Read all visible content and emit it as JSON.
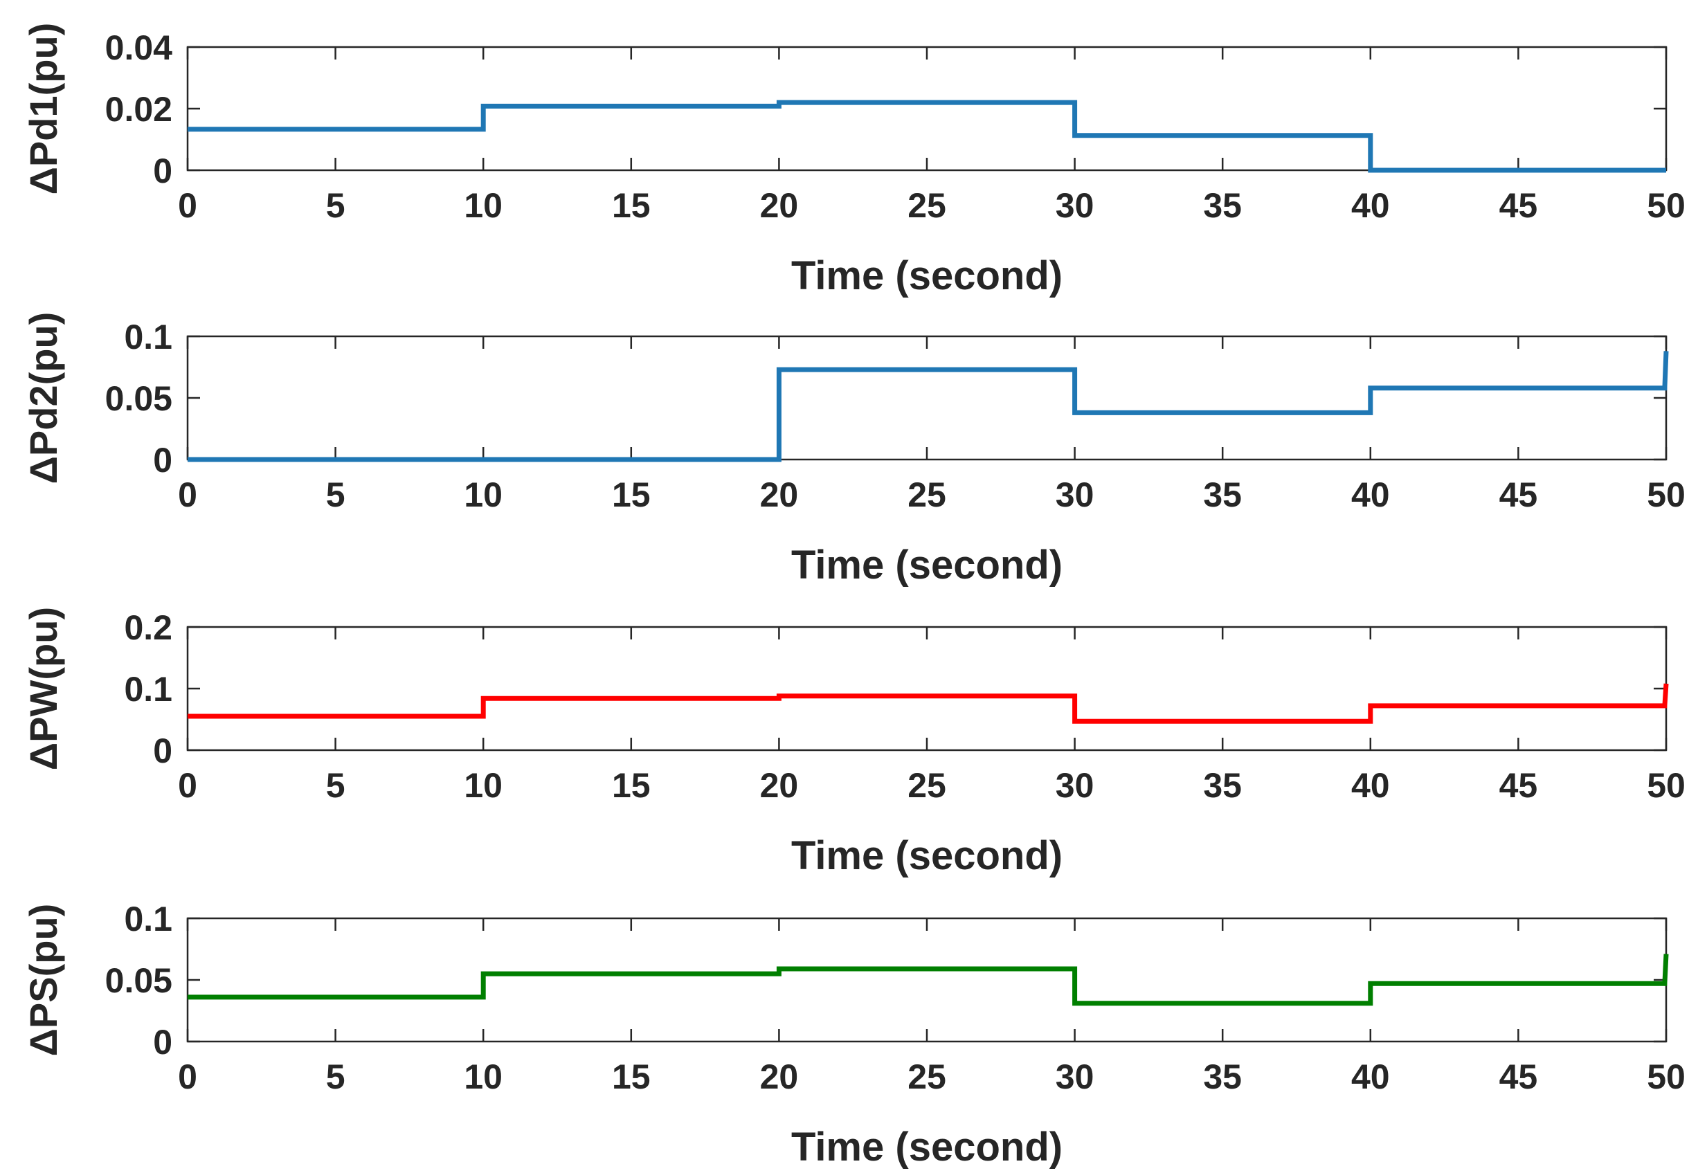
{
  "chart_data": [
    {
      "type": "line",
      "xlabel": "Time (second)",
      "ylabel": "ΔPd1(pu)",
      "xlim": [
        0,
        50
      ],
      "ylim": [
        0,
        0.04
      ],
      "xticks": [
        "0",
        "5",
        "10",
        "15",
        "20",
        "25",
        "30",
        "35",
        "40",
        "45",
        "50"
      ],
      "yticks": [
        "0",
        "0.02",
        "0.04"
      ],
      "grid": false,
      "series": [
        {
          "color": "#1f77b4",
          "x": [
            0,
            10,
            10,
            20,
            20,
            30,
            30,
            40,
            40,
            50
          ],
          "y": [
            0.0133,
            0.0133,
            0.0208,
            0.0208,
            0.022,
            0.022,
            0.0113,
            0.0113,
            0.0,
            0.0
          ]
        }
      ]
    },
    {
      "type": "line",
      "xlabel": "Time (second)",
      "ylabel": "ΔPd2(pu)",
      "xlim": [
        0,
        50
      ],
      "ylim": [
        0,
        0.1
      ],
      "xticks": [
        "0",
        "5",
        "10",
        "15",
        "20",
        "25",
        "30",
        "35",
        "40",
        "45",
        "50"
      ],
      "yticks": [
        "0",
        "0.05",
        "0.1"
      ],
      "grid": false,
      "series": [
        {
          "color": "#1f77b4",
          "x": [
            0,
            20,
            20,
            30,
            30,
            40,
            40,
            49.95,
            50
          ],
          "y": [
            0,
            0,
            0.073,
            0.073,
            0.038,
            0.038,
            0.058,
            0.058,
            0.088
          ]
        }
      ]
    },
    {
      "type": "line",
      "xlabel": "Time (second)",
      "ylabel": "ΔPW(pu)",
      "xlim": [
        0,
        50
      ],
      "ylim": [
        0,
        0.2
      ],
      "xticks": [
        "0",
        "5",
        "10",
        "15",
        "20",
        "25",
        "30",
        "35",
        "40",
        "45",
        "50"
      ],
      "yticks": [
        "0",
        "0.1",
        "0.2"
      ],
      "grid": false,
      "series": [
        {
          "color": "#ff0000",
          "x": [
            0,
            10,
            10,
            20,
            20,
            30,
            30,
            40,
            40,
            49.95,
            50
          ],
          "y": [
            0.055,
            0.055,
            0.084,
            0.084,
            0.088,
            0.088,
            0.047,
            0.047,
            0.072,
            0.072,
            0.108
          ]
        }
      ]
    },
    {
      "type": "line",
      "xlabel": "Time (second)",
      "ylabel": "ΔPS(pu)",
      "xlim": [
        0,
        50
      ],
      "ylim": [
        0,
        0.1
      ],
      "xticks": [
        "0",
        "5",
        "10",
        "15",
        "20",
        "25",
        "30",
        "35",
        "40",
        "45",
        "50"
      ],
      "yticks": [
        "0",
        "0.05",
        "0.1"
      ],
      "grid": false,
      "series": [
        {
          "color": "#007f00",
          "x": [
            0,
            10,
            10,
            20,
            20,
            30,
            30,
            40,
            40,
            49.95,
            50
          ],
          "y": [
            0.036,
            0.036,
            0.055,
            0.055,
            0.059,
            0.059,
            0.031,
            0.031,
            0.047,
            0.047,
            0.071
          ]
        }
      ]
    }
  ]
}
